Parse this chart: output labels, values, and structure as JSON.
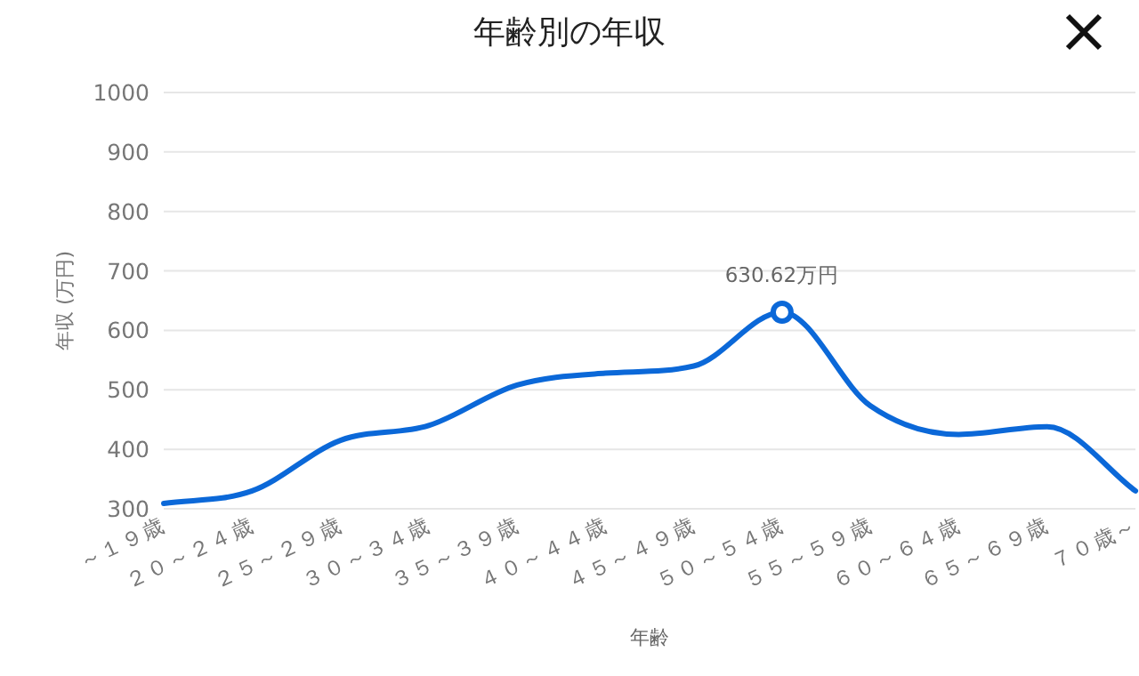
{
  "chart_data": {
    "type": "line",
    "title": "年齢別の年収",
    "xlabel": "年齢",
    "ylabel": "年収 (万円)",
    "categories": [
      "～１９歳",
      "２０～２４歳",
      "２５～２９歳",
      "３０～３４歳",
      "３５～３９歳",
      "４０～４４歳",
      "４５～４９歳",
      "５０～５４歳",
      "５５～５９歳",
      "６０～６４歳",
      "６５～６９歳",
      "７０歳～"
    ],
    "series": [
      {
        "color": "#0b68d8",
        "values": [
          309,
          330,
          415,
          440,
          508,
          528,
          540,
          630.62,
          473,
          425,
          438,
          330
        ],
        "value_labels": [
          null,
          null,
          null,
          null,
          null,
          null,
          null,
          "630.62万円",
          null,
          null,
          null,
          null
        ]
      }
    ],
    "ylim": [
      300,
      1000
    ],
    "yticks": [
      300,
      400,
      500,
      600,
      700,
      800,
      900,
      1000
    ],
    "grid": "y"
  }
}
